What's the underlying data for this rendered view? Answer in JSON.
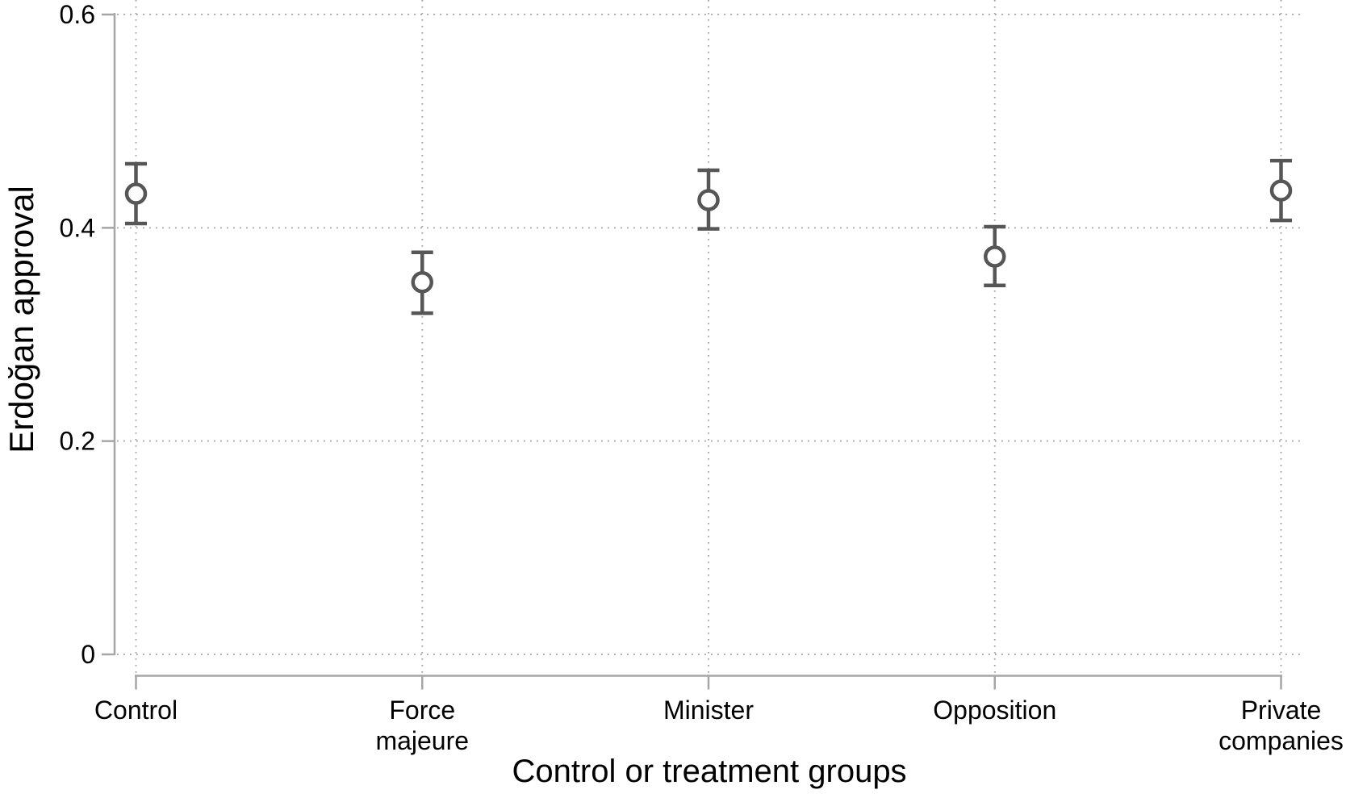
{
  "figure": {
    "background": "#ffffff"
  },
  "chart_data": {
    "type": "scatter",
    "subtype": "point-estimates-with-error-bars",
    "title": "",
    "xlabel": "Control or treatment groups",
    "ylabel": "Erdoğan approval",
    "categories": [
      "Control",
      "Force majeure",
      "Minister",
      "Opposition",
      "Private companies"
    ],
    "category_label_lines": [
      [
        "Control"
      ],
      [
        "Force",
        "majeure"
      ],
      [
        "Minister"
      ],
      [
        "Opposition"
      ],
      [
        "Private",
        "companies"
      ]
    ],
    "ylim": [
      0,
      0.6
    ],
    "yticks": [
      0,
      0.2,
      0.4,
      0.6
    ],
    "ytick_labels": [
      "0",
      "0.2",
      "0.4",
      "0.6"
    ],
    "grid": "dotted horizontal and vertical gridlines",
    "legend": "none",
    "series": [
      {
        "marker": "open-circle",
        "means": [
          0.432,
          0.349,
          0.426,
          0.373,
          0.435
        ],
        "ci_low": [
          0.404,
          0.32,
          0.399,
          0.346,
          0.407
        ],
        "ci_high": [
          0.46,
          0.377,
          0.454,
          0.401,
          0.463
        ]
      }
    ],
    "colors": {
      "marker": "#565656",
      "axis": "#a6a6a6",
      "grid": "#a9a9a9",
      "text": "#000000",
      "background": "#ffffff"
    }
  }
}
